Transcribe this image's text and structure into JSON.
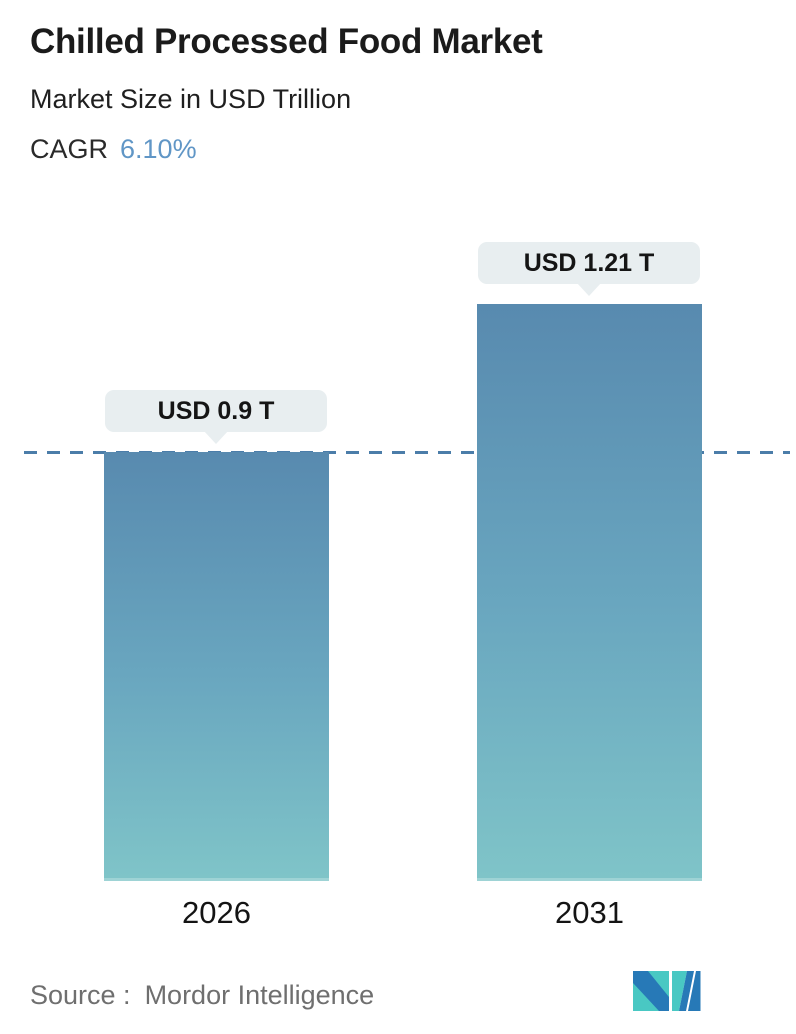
{
  "header": {
    "title": "Chilled Processed Food Market",
    "subtitle": "Market Size in USD Trillion",
    "cagr_label": "CAGR",
    "cagr_value": "6.10%"
  },
  "chart_data": {
    "type": "bar",
    "title": "Chilled Processed Food Market",
    "ylabel": "Market Size in USD Trillion",
    "categories": [
      "2026",
      "2031"
    ],
    "values": [
      0.9,
      1.21
    ],
    "value_labels": [
      "USD 0.9 T",
      "USD 1.21 T"
    ],
    "cagr": "6.10%",
    "unit": "USD Trillion",
    "ylim": [
      0,
      1.3
    ],
    "grid": false,
    "legend": false,
    "reference_line": {
      "value": 0.9,
      "style": "dashed",
      "color": "#4b7da9"
    }
  },
  "footer": {
    "source_label": "Source :",
    "source_value": "Mordor Intelligence"
  },
  "colors": {
    "cagr_accent": "#6096c6",
    "bar_gradient_top": "#588aaf",
    "bar_gradient_mid": "#69a6bf",
    "bar_gradient_bottom": "#7fc4c8",
    "dashed_line": "#4b7da9",
    "callout_bg": "#e8eef0",
    "title_text": "#1b1b1b",
    "source_text": "#6f6f6f",
    "logo_teal": "#49c8c3",
    "logo_blue": "#2779b7"
  }
}
